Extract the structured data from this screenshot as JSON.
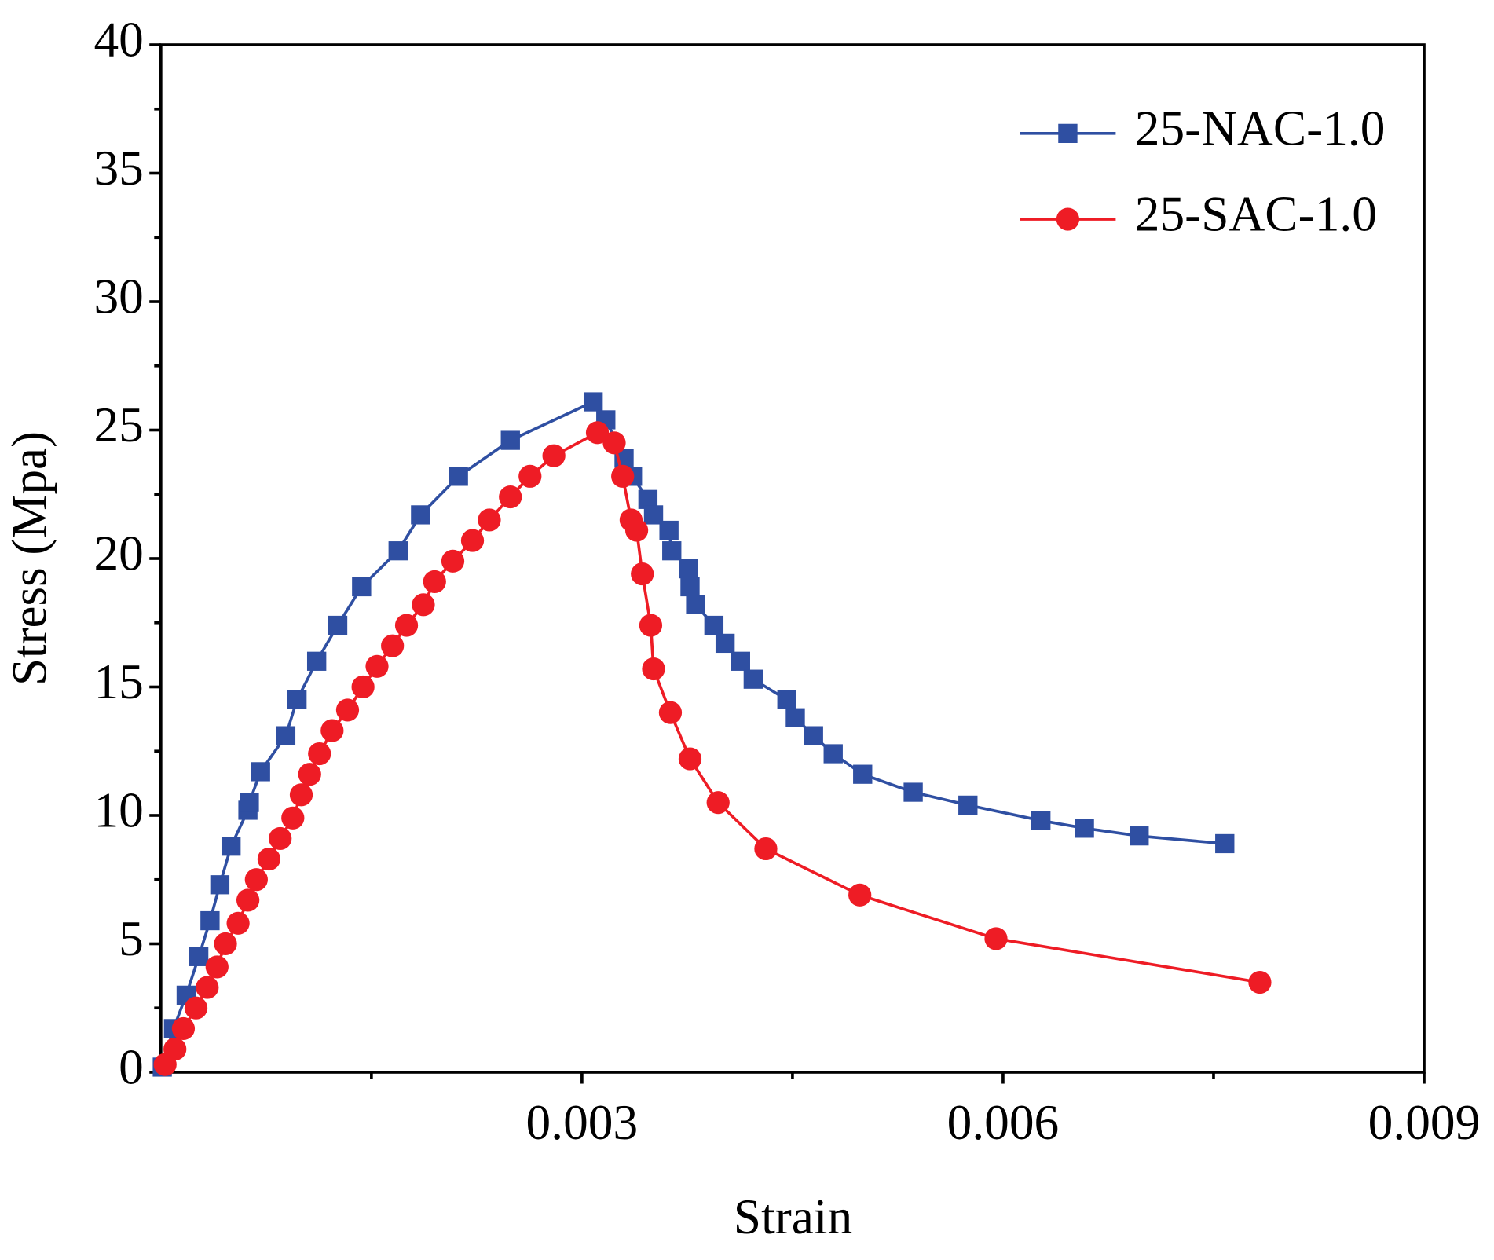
{
  "chart_data": {
    "type": "line",
    "x_label": "Strain",
    "y_label": "Stress (Mpa)",
    "xlim": [
      0,
      0.009
    ],
    "xticks": [
      0.003,
      0.006,
      0.009
    ],
    "ylim": [
      0,
      40
    ],
    "yticks": [
      0,
      5,
      10,
      15,
      20,
      25,
      30,
      35,
      40
    ],
    "legend": "upper right",
    "series": [
      {
        "name": "25-NAC-1.0",
        "color": "#2f4fa2",
        "marker": "square",
        "x": [
          1e-05,
          9e-05,
          0.00018,
          0.00027,
          0.00035,
          0.00042,
          0.0005,
          0.00062,
          0.00063,
          0.00071,
          0.00089,
          0.00097,
          0.00111,
          0.00126,
          0.00143,
          0.00169,
          0.00185,
          0.00212,
          0.00249,
          0.00308,
          0.00317,
          0.0033,
          0.00336,
          0.00347,
          0.00351,
          0.00362,
          0.00364,
          0.00376,
          0.00377,
          0.00381,
          0.00394,
          0.00402,
          0.00413,
          0.00422,
          0.00446,
          0.00452,
          0.00465,
          0.00479,
          0.005,
          0.00536,
          0.00575,
          0.00627,
          0.00658,
          0.00697,
          0.00758
        ],
        "values": [
          0.2,
          1.7,
          3.0,
          4.5,
          5.9,
          7.3,
          8.8,
          10.2,
          10.5,
          11.7,
          13.1,
          14.5,
          16.0,
          17.4,
          18.9,
          20.3,
          21.7,
          23.2,
          24.6,
          26.1,
          25.4,
          23.9,
          23.2,
          22.3,
          21.7,
          21.1,
          20.3,
          19.6,
          18.9,
          18.2,
          17.4,
          16.7,
          16.0,
          15.3,
          14.5,
          13.8,
          13.1,
          12.4,
          11.6,
          10.9,
          10.4,
          9.8,
          9.5,
          9.2,
          8.9
        ]
      },
      {
        "name": "25-SAC-1.0",
        "color": "#ee1c25",
        "marker": "circle",
        "x": [
          3e-05,
          0.0001,
          0.00016,
          0.00025,
          0.00033,
          0.0004,
          0.00046,
          0.00055,
          0.00062,
          0.00068,
          0.00077,
          0.00085,
          0.00094,
          0.001,
          0.00106,
          0.00113,
          0.00122,
          0.00133,
          0.00144,
          0.00154,
          0.00165,
          0.00175,
          0.00187,
          0.00195,
          0.00208,
          0.00222,
          0.00234,
          0.00249,
          0.00263,
          0.0028,
          0.00311,
          0.00323,
          0.00329,
          0.00335,
          0.00339,
          0.00343,
          0.00349,
          0.00351,
          0.00363,
          0.00377,
          0.00397,
          0.00431,
          0.00498,
          0.00595,
          0.00783
        ],
        "values": [
          0.3,
          0.9,
          1.7,
          2.5,
          3.3,
          4.1,
          5.0,
          5.8,
          6.7,
          7.5,
          8.3,
          9.1,
          9.9,
          10.8,
          11.6,
          12.4,
          13.3,
          14.1,
          15.0,
          15.8,
          16.6,
          17.4,
          18.2,
          19.1,
          19.9,
          20.7,
          21.5,
          22.4,
          23.2,
          24.0,
          24.9,
          24.5,
          23.2,
          21.5,
          21.1,
          19.4,
          17.4,
          15.7,
          14.0,
          12.2,
          10.5,
          8.7,
          6.9,
          5.2,
          3.5
        ]
      }
    ]
  }
}
